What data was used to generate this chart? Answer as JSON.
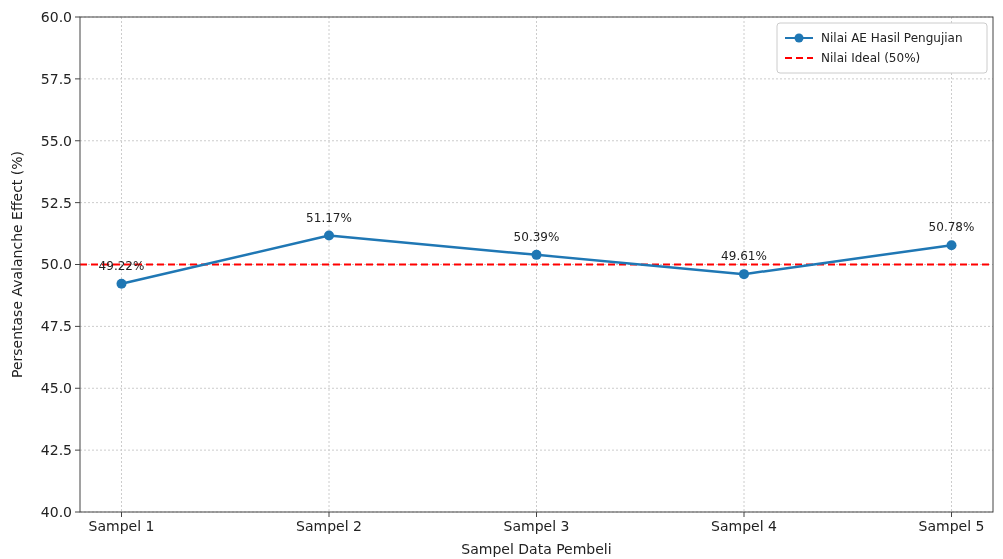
{
  "chart_data": {
    "type": "line",
    "xlabel": "Sampel Data Pembeli",
    "ylabel": "Persentase Avalanche Effect (%)",
    "categories": [
      "Sampel 1",
      "Sampel 2",
      "Sampel 3",
      "Sampel 4",
      "Sampel 5"
    ],
    "series": [
      {
        "name": "Nilai AE Hasil Pengujian",
        "color": "#1f77b4",
        "values": [
          49.22,
          51.17,
          50.39,
          49.61,
          50.78
        ],
        "value_labels": [
          "49.22%",
          "51.17%",
          "50.39%",
          "49.61%",
          "50.78%"
        ]
      }
    ],
    "ylim": [
      40,
      60
    ],
    "yticks": [
      {
        "value": 40,
        "label": "40.0"
      },
      {
        "value": 42.5,
        "label": "42.5"
      },
      {
        "value": 45,
        "label": "45.0"
      },
      {
        "value": 47.5,
        "label": "47.5"
      },
      {
        "value": 50,
        "label": "50.0"
      },
      {
        "value": 52.5,
        "label": "52.5"
      },
      {
        "value": 55,
        "label": "55.0"
      },
      {
        "value": 57.5,
        "label": "57.5"
      },
      {
        "value": 60,
        "label": "60.0"
      }
    ],
    "ref_lines": [
      {
        "axis": "y",
        "value": 50,
        "label": "Nilai Ideal (50%)",
        "color": "#ff0000",
        "line_style": "dashed"
      }
    ],
    "grid": true,
    "legend": "top right",
    "marker": "circle",
    "line_style": "solid"
  }
}
